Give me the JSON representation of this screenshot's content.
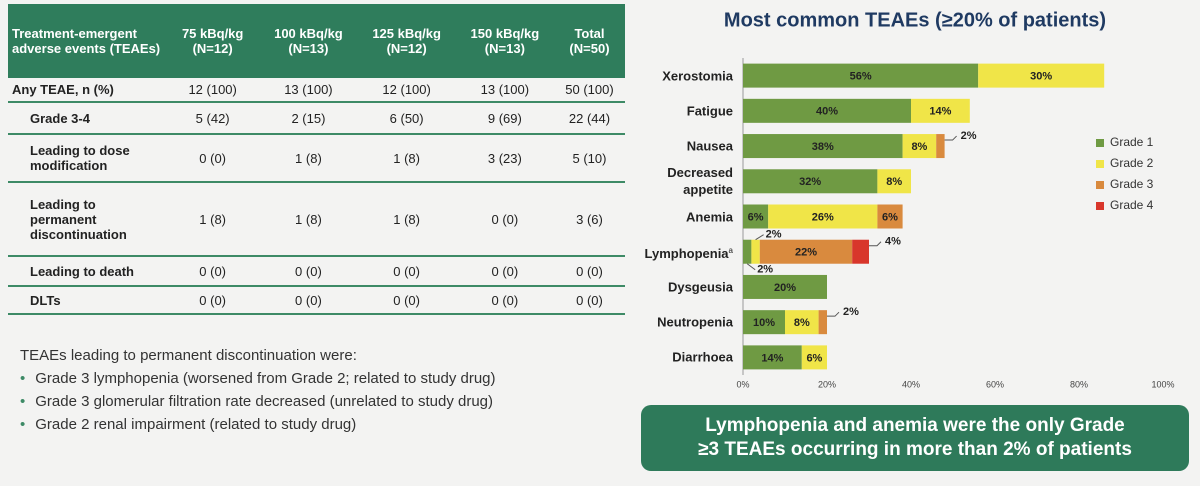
{
  "table": {
    "header": [
      "Treatment-emergent adverse events (TEAEs)",
      "75 kBq/kg (N=12)",
      "100 kBq/kg (N=13)",
      "125 kBq/kg (N=12)",
      "150 kBq/kg (N=13)",
      "Total (N=50)"
    ],
    "rows": [
      [
        "Any TEAE, n (%)",
        "12 (100)",
        "13 (100)",
        "12 (100)",
        "13 (100)",
        "50 (100)"
      ],
      [
        "Grade 3-4",
        "5 (42)",
        "2 (15)",
        "6 (50)",
        "9 (69)",
        "22 (44)"
      ],
      [
        "Leading to dose modification",
        "0 (0)",
        "1 (8)",
        "1 (8)",
        "3 (23)",
        "5 (10)"
      ],
      [
        "Leading to permanent discontinuation",
        "1 (8)",
        "1 (8)",
        "1 (8)",
        "0 (0)",
        "3 (6)"
      ],
      [
        "Leading to death",
        "0 (0)",
        "0 (0)",
        "0 (0)",
        "0 (0)",
        "0 (0)"
      ],
      [
        "DLTs",
        "0 (0)",
        "0 (0)",
        "0 (0)",
        "0 (0)",
        "0 (0)"
      ]
    ]
  },
  "notes": {
    "heading": "TEAEs leading to permanent discontinuation were:",
    "items": [
      "Grade 3 lymphopenia (worsened from Grade 2; related to study drug)",
      "Grade 3 glomerular filtration rate decreased (unrelated to study drug)",
      "Grade 2 renal impairment (related to study drug)"
    ]
  },
  "chart_data": {
    "type": "stacked-bar-horizontal",
    "title": "Most common TEAEs (≥20% of patients)",
    "categories": [
      "Xerostomia",
      "Fatigue",
      "Nausea",
      "Decreased appetite",
      "Anemia",
      "Lymphopenia",
      "Dysgeusia",
      "Neutropenia",
      "Diarrhoea"
    ],
    "category_markers": [
      null,
      null,
      null,
      null,
      null,
      "a",
      null,
      null,
      null
    ],
    "series": [
      {
        "name": "Grade 1",
        "color": "#6f9a43",
        "values": [
          56,
          40,
          38,
          32,
          6,
          2,
          20,
          10,
          14
        ],
        "value_labels": [
          "56%",
          "40%",
          "38%",
          "32%",
          "6%",
          "2%",
          "20%",
          "10%",
          "14%"
        ]
      },
      {
        "name": "Grade 2",
        "color": "#f0e548",
        "values": [
          30,
          14,
          8,
          8,
          26,
          2,
          null,
          8,
          6
        ],
        "value_labels": [
          "30%",
          "14%",
          "8%",
          "8%",
          "26%",
          "2%",
          null,
          "8%",
          "6%"
        ]
      },
      {
        "name": "Grade 3",
        "color": "#d98a3e",
        "values": [
          null,
          null,
          2,
          null,
          6,
          22,
          null,
          2,
          null
        ],
        "value_labels": [
          null,
          null,
          "2%",
          null,
          "6%",
          "22%",
          null,
          "2%",
          null
        ]
      },
      {
        "name": "Grade 4",
        "color": "#d8362b",
        "values": [
          null,
          null,
          null,
          null,
          null,
          4,
          null,
          null,
          null
        ],
        "value_labels": [
          null,
          null,
          null,
          null,
          null,
          "4%",
          null,
          null,
          null
        ]
      }
    ],
    "xlim": [
      0,
      100
    ],
    "xticks": [
      {
        "value": 0,
        "label": "0%"
      },
      {
        "value": 20,
        "label": "20%"
      },
      {
        "value": 40,
        "label": "40%"
      },
      {
        "value": 60,
        "label": "60%"
      },
      {
        "value": 80,
        "label": "80%"
      },
      {
        "value": 100,
        "label": "100%"
      }
    ],
    "legend": "right"
  },
  "callout": "Lymphopenia and anemia were the only Grade ≥3 TEAEs occurring in more than 2% of patients"
}
